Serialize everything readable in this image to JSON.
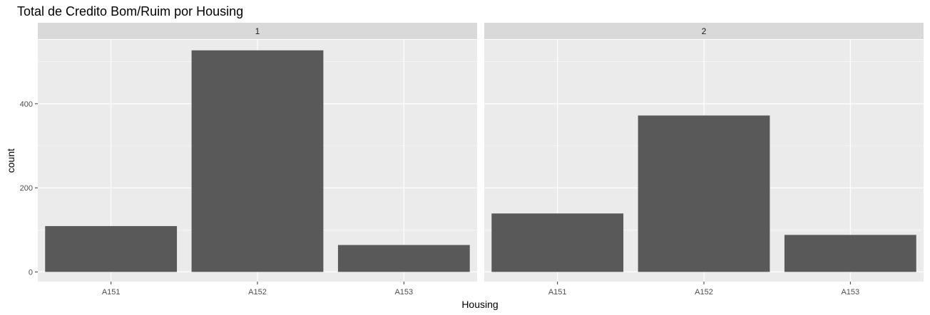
{
  "chart_data": {
    "type": "bar",
    "title": "Total de Credito Bom/Ruim por Housing",
    "xlabel": "Housing",
    "ylabel": "count",
    "categories": [
      "A151",
      "A152",
      "A153"
    ],
    "y_ticks": [
      0,
      200,
      400
    ],
    "ylim": [
      -23,
      552
    ],
    "grid": true,
    "legend": "none",
    "bar_color": "#595959",
    "panel_background": "#ebebeb",
    "strip_background": "#d9d9d9",
    "grid_color": "#ffffff",
    "facets": [
      {
        "label": "1",
        "values": [
          109,
          527,
          64
        ]
      },
      {
        "label": "2",
        "values": [
          139,
          372,
          88
        ]
      }
    ]
  }
}
